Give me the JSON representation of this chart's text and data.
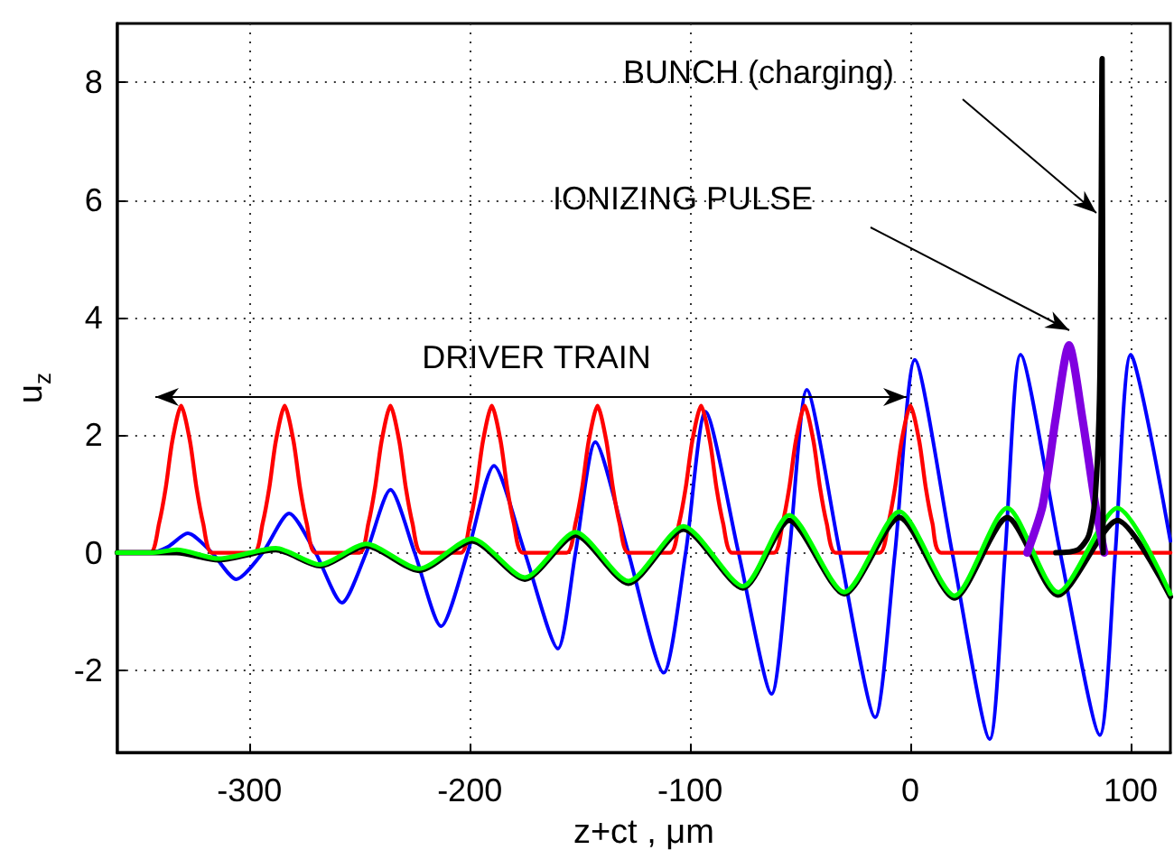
{
  "chart_data": {
    "type": "line",
    "xlabel": "z+ct , μm",
    "ylabel": "u$_{z}$",
    "xlim": [
      -360,
      118
    ],
    "ylim": [
      -3.4,
      9
    ],
    "xticks": [
      -300,
      -200,
      -100,
      0,
      100
    ],
    "yticks": [
      -2,
      0,
      2,
      4,
      6,
      8
    ],
    "grid": true,
    "marker": "none",
    "line_style": "solid",
    "series": [
      {
        "color": "#0000ff",
        "x": [
          -360,
          -345,
          -337,
          -328,
          -317,
          -306,
          -294,
          -282,
          -270,
          -258,
          -247,
          -236,
          -225,
          -213,
          -201,
          -189,
          -175,
          -160,
          -152,
          -143,
          -128,
          -112,
          -102,
          -93,
          -78,
          -63,
          -55,
          -47,
          -32,
          -16,
          -7,
          2,
          19,
          36,
          43,
          50,
          68,
          86,
          93,
          100,
          118
        ],
        "values": [
          0,
          0,
          0.1,
          0.33,
          0,
          -0.45,
          0,
          0.67,
          0,
          -0.85,
          0,
          1.07,
          0,
          -1.25,
          0,
          1.48,
          0,
          -1.63,
          0,
          1.88,
          0,
          -2.04,
          0,
          2.4,
          0,
          -2.4,
          0,
          2.77,
          0,
          -2.8,
          0,
          3.28,
          0,
          -3.17,
          0,
          3.37,
          0,
          -3.1,
          0,
          3.37,
          0.2
        ]
      },
      {
        "color": "#ff0000",
        "x": [
          -360,
          -345,
          -341,
          -338,
          -335,
          -331,
          -327,
          -324,
          -321,
          -317,
          -298,
          -294,
          -291,
          -288,
          -284,
          -280,
          -277,
          -274,
          -270,
          -250,
          -246,
          -243,
          -240,
          -236,
          -232,
          -229,
          -226,
          -222,
          -204,
          -200,
          -197,
          -194,
          -190,
          -186,
          -183,
          -180,
          -176,
          -156,
          -152,
          -149,
          -146,
          -142,
          -138,
          -135,
          -132,
          -128,
          -109,
          -105,
          -102,
          -99,
          -95,
          -91,
          -88,
          -85,
          -81,
          -62,
          -58,
          -55,
          -52,
          -48,
          -44,
          -41,
          -38,
          -34,
          -14,
          -10,
          -7,
          -4,
          0,
          4,
          7,
          10,
          14,
          118
        ],
        "values": [
          0,
          0,
          0.5,
          1.1,
          1.9,
          2.5,
          1.9,
          1.1,
          0.5,
          0,
          0,
          0.5,
          1.1,
          1.9,
          2.5,
          1.9,
          1.1,
          0.5,
          0,
          0,
          0.5,
          1.1,
          1.9,
          2.5,
          1.9,
          1.1,
          0.5,
          0,
          0,
          0.5,
          1.1,
          1.9,
          2.5,
          1.9,
          1.1,
          0.5,
          0,
          0,
          0.5,
          1.1,
          1.9,
          2.5,
          1.9,
          1.1,
          0.5,
          0,
          0,
          0.5,
          1.1,
          1.9,
          2.5,
          1.9,
          1.1,
          0.5,
          0,
          0,
          0.5,
          1.1,
          1.9,
          2.5,
          1.9,
          1.1,
          0.5,
          0,
          0,
          0.5,
          1.1,
          1.9,
          2.5,
          1.9,
          1.1,
          0.5,
          0,
          0
        ]
      },
      {
        "color": "#000000",
        "x": [
          -360,
          -345,
          -333,
          -314,
          -288,
          -268,
          -247,
          -223,
          -199,
          -175,
          -152,
          -128,
          -103,
          -76,
          -55,
          -30,
          -5,
          20,
          44,
          67,
          94,
          118
        ],
        "values": [
          0,
          0,
          0,
          -0.12,
          0.05,
          -0.22,
          0.12,
          -0.3,
          0.2,
          -0.45,
          0.3,
          -0.52,
          0.4,
          -0.6,
          0.55,
          -0.7,
          0.6,
          -0.77,
          0.6,
          -0.72,
          0.55,
          -0.75
        ]
      },
      {
        "color": "#00ff00",
        "x": [
          -360,
          -345,
          -333,
          -314,
          -288,
          -268,
          -247,
          -223,
          -199,
          -175,
          -152,
          -128,
          -103,
          -76,
          -55,
          -30,
          -5,
          20,
          44,
          67,
          94,
          118
        ],
        "values": [
          0,
          0,
          0.05,
          -0.1,
          0.08,
          -0.2,
          0.15,
          -0.27,
          0.24,
          -0.42,
          0.35,
          -0.48,
          0.45,
          -0.57,
          0.64,
          -0.67,
          0.7,
          -0.73,
          0.76,
          -0.67,
          0.76,
          -0.7
        ]
      },
      {
        "color": "#8000e0",
        "x": [
          53,
          60,
          66,
          72,
          78,
          84,
          88
        ],
        "values": [
          0,
          0.8,
          2.3,
          3.53,
          2.3,
          0.8,
          0
        ]
      },
      {
        "color": "#000000",
        "x": [
          66,
          76,
          81,
          84,
          86,
          87,
          87.5
        ],
        "values": [
          0,
          0.05,
          0.3,
          1,
          3,
          8.4,
          0
        ]
      }
    ],
    "annotations": [
      "BUNCH (charging)",
      "IONIZING PULSE",
      "DRIVER TRAIN"
    ]
  }
}
